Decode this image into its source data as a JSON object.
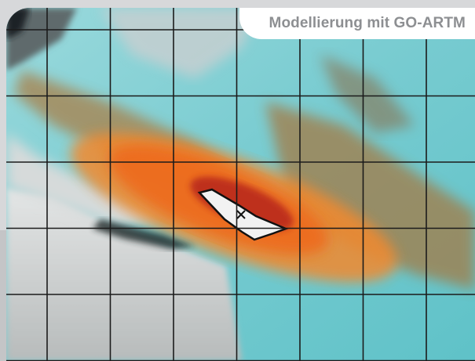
{
  "title": "Modellierung mit GO-ARTM",
  "grid": {
    "columns": 7,
    "rows": 6,
    "line_color": "#1b1b1b"
  },
  "colors": {
    "background": "#d7d8da",
    "title_text": "#8d8f92",
    "water": "#7fcfd3",
    "terrain_gray": "#cfd2d2",
    "plume_orange": "#f07a1e",
    "plume_red": "#b3261b",
    "plume_brown": "#9a6b3a",
    "feature_white": "#f2f2f2"
  },
  "icons": [
    "title-tab",
    "marker-x-icon"
  ]
}
